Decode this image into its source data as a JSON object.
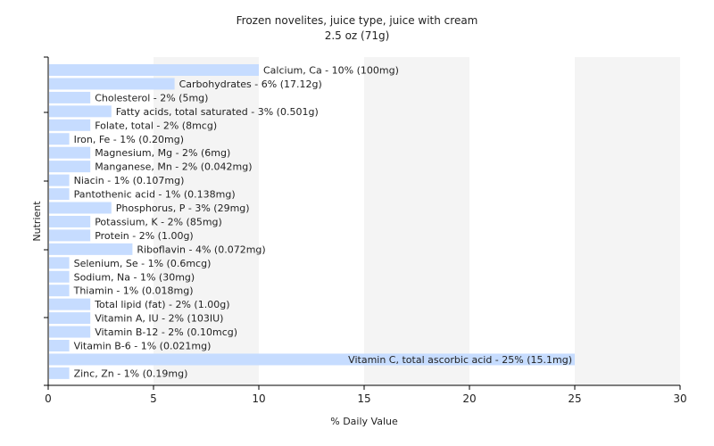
{
  "chart_data": {
    "type": "bar",
    "orientation": "horizontal",
    "title": "Frozen novelites, juice type, juice with cream",
    "subtitle": "2.5 oz (71g)",
    "xlabel": "% Daily Value",
    "ylabel": "Nutrient",
    "xlim": [
      0,
      30
    ],
    "xticks": [
      "0",
      "5",
      "10",
      "15",
      "20",
      "25",
      "30"
    ],
    "grid": "vertical bands",
    "bar_color": "#c6dcff",
    "categories": [
      "Calcium, Ca",
      "Carbohydrates",
      "Cholesterol",
      "Fatty acids, total saturated",
      "Folate, total",
      "Iron, Fe",
      "Magnesium, Mg",
      "Manganese, Mn",
      "Niacin",
      "Pantothenic acid",
      "Phosphorus, P",
      "Potassium, K",
      "Protein",
      "Riboflavin",
      "Selenium, Se",
      "Sodium, Na",
      "Thiamin",
      "Total lipid (fat)",
      "Vitamin A, IU",
      "Vitamin B-12",
      "Vitamin B-6",
      "Vitamin C, total ascorbic acid",
      "Zinc, Zn"
    ],
    "values": [
      10,
      6,
      2,
      3,
      2,
      1,
      2,
      2,
      1,
      1,
      3,
      2,
      2,
      4,
      1,
      1,
      1,
      2,
      2,
      2,
      1,
      25,
      1
    ],
    "labels": [
      "Calcium, Ca - 10% (100mg)",
      "Carbohydrates - 6% (17.12g)",
      "Cholesterol - 2% (5mg)",
      "Fatty acids, total saturated - 3% (0.501g)",
      "Folate, total - 2% (8mcg)",
      "Iron, Fe - 1% (0.20mg)",
      "Magnesium, Mg - 2% (6mg)",
      "Manganese, Mn - 2% (0.042mg)",
      "Niacin - 1% (0.107mg)",
      "Pantothenic acid - 1% (0.138mg)",
      "Phosphorus, P - 3% (29mg)",
      "Potassium, K - 2% (85mg)",
      "Protein - 2% (1.00g)",
      "Riboflavin - 4% (0.072mg)",
      "Selenium, Se - 1% (0.6mcg)",
      "Sodium, Na - 1% (30mg)",
      "Thiamin - 1% (0.018mg)",
      "Total lipid (fat) - 2% (1.00g)",
      "Vitamin A, IU - 2% (103IU)",
      "Vitamin B-12 - 2% (0.10mcg)",
      "Vitamin B-6 - 1% (0.021mg)",
      "Vitamin C, total ascorbic acid - 25% (15.1mg)",
      "Zinc, Zn - 1% (0.19mg)"
    ]
  }
}
